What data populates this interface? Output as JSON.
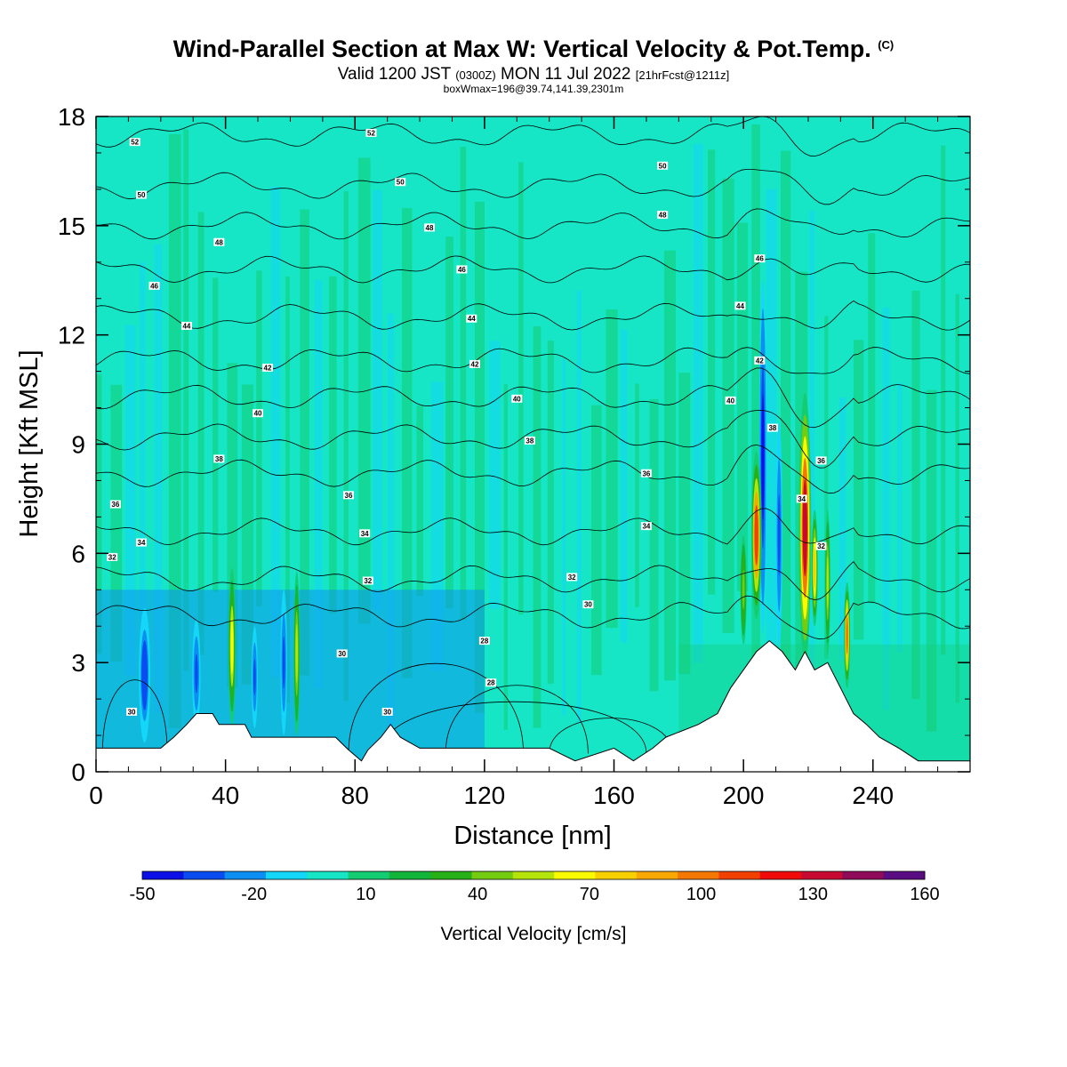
{
  "title": {
    "main": "Wind-Parallel Section at Max W: Vertical Velocity & Pot.Temp.",
    "main_mark": "(C)",
    "valid_a": "Valid 1200 JST",
    "valid_b": "(0300Z)",
    "valid_c": "MON 11 Jul 2022",
    "valid_d": "[21hrFcst@1211z]",
    "box": "boxWmax=196@39.74,141.39,2301m"
  },
  "chart_data": {
    "type": "heatmap",
    "xlabel": "Distance [nm]",
    "ylabel": "Height [Kft MSL]",
    "xlim": [
      0,
      270
    ],
    "ylim": [
      0,
      18
    ],
    "x_ticks": [
      0,
      40,
      80,
      120,
      160,
      200,
      240
    ],
    "y_ticks": [
      0,
      3,
      6,
      9,
      12,
      15,
      18
    ],
    "colorbar": {
      "title": "Vertical Velocity [cm/s]",
      "labels": [
        "-50",
        "-20",
        "10",
        "40",
        "70",
        "100",
        "130",
        "160"
      ],
      "label_values": [
        -50,
        -20,
        10,
        40,
        70,
        100,
        130,
        160
      ],
      "min": -50,
      "max": 160,
      "colors": [
        "#0a10e6",
        "#0a4cf0",
        "#0c8ef2",
        "#14d6f8",
        "#16e6c6",
        "#14cc72",
        "#12b43a",
        "#28b018",
        "#74cc10",
        "#b4e40a",
        "#fafa00",
        "#f8d000",
        "#f8a800",
        "#f47800",
        "#f24000",
        "#f00a0a",
        "#c80a32",
        "#900a5a",
        "#5a0c82"
      ]
    },
    "terrain": [
      [
        0,
        0.65
      ],
      [
        20,
        0.65
      ],
      [
        24,
        0.95
      ],
      [
        28,
        1.3
      ],
      [
        31,
        1.6
      ],
      [
        36,
        1.6
      ],
      [
        38,
        1.3
      ],
      [
        46,
        1.3
      ],
      [
        48,
        0.95
      ],
      [
        74,
        0.95
      ],
      [
        78,
        0.6
      ],
      [
        82,
        0.3
      ],
      [
        84,
        0.6
      ],
      [
        88,
        0.95
      ],
      [
        91,
        1.3
      ],
      [
        94,
        0.95
      ],
      [
        100,
        0.65
      ],
      [
        140,
        0.65
      ],
      [
        148,
        0.3
      ],
      [
        160,
        0.65
      ],
      [
        166,
        0.3
      ],
      [
        172,
        0.65
      ],
      [
        176,
        0.95
      ],
      [
        186,
        1.3
      ],
      [
        192,
        1.6
      ],
      [
        196,
        2.3
      ],
      [
        200,
        2.8
      ],
      [
        204,
        3.3
      ],
      [
        208,
        3.6
      ],
      [
        212,
        3.3
      ],
      [
        216,
        2.8
      ],
      [
        219,
        3.3
      ],
      [
        222,
        2.8
      ],
      [
        226,
        3.0
      ],
      [
        230,
        2.3
      ],
      [
        234,
        1.6
      ],
      [
        238,
        1.3
      ],
      [
        242,
        0.95
      ],
      [
        248,
        0.65
      ],
      [
        254,
        0.3
      ],
      [
        270,
        0.3
      ]
    ],
    "w_features": [
      {
        "x": 15,
        "y0": 0.8,
        "y1": 4.5,
        "width": 2.2,
        "value": -35
      },
      {
        "x": 31,
        "y0": 1.2,
        "y1": 4.2,
        "width": 1.6,
        "value": -30
      },
      {
        "x": 42,
        "y0": 1.3,
        "y1": 5.6,
        "width": 1.4,
        "value": 65
      },
      {
        "x": 49,
        "y0": 1.2,
        "y1": 4.0,
        "width": 1.2,
        "value": -30
      },
      {
        "x": 58,
        "y0": 1.0,
        "y1": 5.0,
        "width": 1.3,
        "value": -30
      },
      {
        "x": 62,
        "y0": 1.0,
        "y1": 5.5,
        "width": 1.2,
        "value": 55
      },
      {
        "x": 206,
        "y0": 3.8,
        "y1": 13.5,
        "width": 1.4,
        "value": -40
      },
      {
        "x": 204,
        "y0": 4.2,
        "y1": 8.8,
        "width": 2.0,
        "value": 110
      },
      {
        "x": 200,
        "y0": 3.5,
        "y1": 6.5,
        "width": 1.2,
        "value": 45
      },
      {
        "x": 211,
        "y0": 3.4,
        "y1": 9.6,
        "width": 1.3,
        "value": -30
      },
      {
        "x": 219,
        "y0": 3.0,
        "y1": 10.4,
        "width": 2.4,
        "value": 130
      },
      {
        "x": 222,
        "y0": 4.0,
        "y1": 7.2,
        "width": 1.2,
        "value": 80
      },
      {
        "x": 226,
        "y0": 3.2,
        "y1": 7.2,
        "width": 1.0,
        "value": 60
      },
      {
        "x": 232,
        "y0": 2.3,
        "y1": 5.2,
        "width": 1.2,
        "value": 95
      }
    ],
    "theta_contours": [
      {
        "value": 30,
        "level": 4.3,
        "label_x": 150
      },
      {
        "value": 32,
        "level": 5.3,
        "label_x": 147
      },
      {
        "value": 34,
        "level": 6.6,
        "label_x": 170
      },
      {
        "value": 36,
        "level": 8.2,
        "label_x": 170
      },
      {
        "value": 38,
        "level": 9.2,
        "label_x": 134
      },
      {
        "value": 40,
        "level": 10.3,
        "label_x": 130
      },
      {
        "value": 42,
        "level": 11.3,
        "label_x": 118
      },
      {
        "value": 44,
        "level": 12.5,
        "label_x": 116
      },
      {
        "value": 46,
        "level": 13.8,
        "label_x": 113
      },
      {
        "value": 48,
        "level": 15.0,
        "label_x": 103
      },
      {
        "value": 50,
        "level": 16.1,
        "label_x": 94
      },
      {
        "value": 52,
        "level": 17.5,
        "label_x": 85
      }
    ],
    "contour_labels": [
      {
        "text": "52",
        "x": 12,
        "y": 17.3
      },
      {
        "text": "52",
        "x": 85,
        "y": 17.55
      },
      {
        "text": "50",
        "x": 14,
        "y": 15.85
      },
      {
        "text": "50",
        "x": 94,
        "y": 16.2
      },
      {
        "text": "50",
        "x": 175,
        "y": 16.65
      },
      {
        "text": "48",
        "x": 38,
        "y": 14.55
      },
      {
        "text": "48",
        "x": 103,
        "y": 14.95
      },
      {
        "text": "48",
        "x": 175,
        "y": 15.3
      },
      {
        "text": "46",
        "x": 18,
        "y": 13.35
      },
      {
        "text": "46",
        "x": 113,
        "y": 13.8
      },
      {
        "text": "46",
        "x": 205,
        "y": 14.1
      },
      {
        "text": "44",
        "x": 28,
        "y": 12.25
      },
      {
        "text": "44",
        "x": 116,
        "y": 12.45
      },
      {
        "text": "44",
        "x": 199,
        "y": 12.8
      },
      {
        "text": "42",
        "x": 53,
        "y": 11.1
      },
      {
        "text": "42",
        "x": 117,
        "y": 11.2
      },
      {
        "text": "42",
        "x": 205,
        "y": 11.3
      },
      {
        "text": "40",
        "x": 50,
        "y": 9.85
      },
      {
        "text": "40",
        "x": 130,
        "y": 10.25
      },
      {
        "text": "40",
        "x": 196,
        "y": 10.2
      },
      {
        "text": "38",
        "x": 38,
        "y": 8.6
      },
      {
        "text": "38",
        "x": 134,
        "y": 9.1
      },
      {
        "text": "38",
        "x": 209,
        "y": 9.45
      },
      {
        "text": "36",
        "x": 6,
        "y": 7.35
      },
      {
        "text": "36",
        "x": 78,
        "y": 7.6
      },
      {
        "text": "36",
        "x": 170,
        "y": 8.2
      },
      {
        "text": "36",
        "x": 224,
        "y": 8.55
      },
      {
        "text": "34",
        "x": 14,
        "y": 6.3
      },
      {
        "text": "34",
        "x": 83,
        "y": 6.55
      },
      {
        "text": "34",
        "x": 170,
        "y": 6.75
      },
      {
        "text": "34",
        "x": 218,
        "y": 7.5
      },
      {
        "text": "32",
        "x": 5,
        "y": 5.9
      },
      {
        "text": "32",
        "x": 84,
        "y": 5.25
      },
      {
        "text": "32",
        "x": 147,
        "y": 5.35
      },
      {
        "text": "32",
        "x": 224,
        "y": 6.2
      },
      {
        "text": "30",
        "x": 76,
        "y": 3.25
      },
      {
        "text": "30",
        "x": 152,
        "y": 4.6
      },
      {
        "text": "30",
        "x": 11,
        "y": 1.65
      },
      {
        "text": "30",
        "x": 90,
        "y": 1.65
      },
      {
        "text": "28",
        "x": 120,
        "y": 3.6
      },
      {
        "text": "28",
        "x": 122,
        "y": 2.45
      }
    ]
  }
}
